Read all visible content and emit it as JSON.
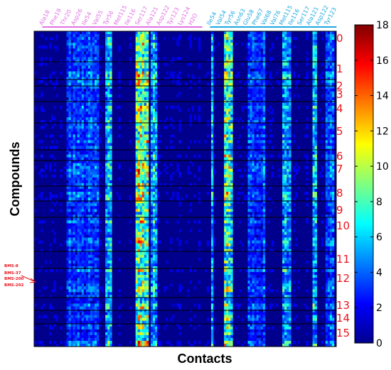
{
  "chart_data": {
    "type": "heatmap",
    "title": "",
    "xlabel": "Contacts",
    "ylabel": "Compounds",
    "colorbar": {
      "min": 0,
      "max": 18,
      "ticks": [
        0,
        2,
        4,
        6,
        8,
        10,
        12,
        14,
        16,
        18
      ],
      "colormap": "jet"
    },
    "cluster_labels": [
      "0",
      "1",
      "2",
      "3",
      "4",
      "5",
      "6",
      "7",
      "8",
      "9",
      "10",
      "11",
      "12",
      "13",
      "14",
      "15"
    ],
    "cluster_label_color": "#e8141c",
    "highlighted_compounds": [
      "BMS-8",
      "BMS-37",
      "BMS-200",
      "BMS-202"
    ],
    "contact_groups": [
      {
        "chain_color": "#e070e0",
        "residues": [
          "Ala18",
          "Phe19",
          "Thr20",
          "Asp26",
          "Ile54",
          "Val55",
          "Tyr56",
          "Met115",
          "Ile116",
          "Ser117",
          "Ala121",
          "Asp122",
          "Tyr123",
          "Lys124",
          "H2O"
        ]
      },
      {
        "chain_color": "#1ea8e0",
        "residues": [
          "Ile54",
          "Val54",
          "Tyr56",
          "Asn63",
          "Glu58",
          "Phe67",
          "Val68",
          "Val76",
          "Met115",
          "Ile116",
          "Ser117",
          "Ala121",
          "Asp122",
          "Tyr123"
        ]
      }
    ]
  }
}
